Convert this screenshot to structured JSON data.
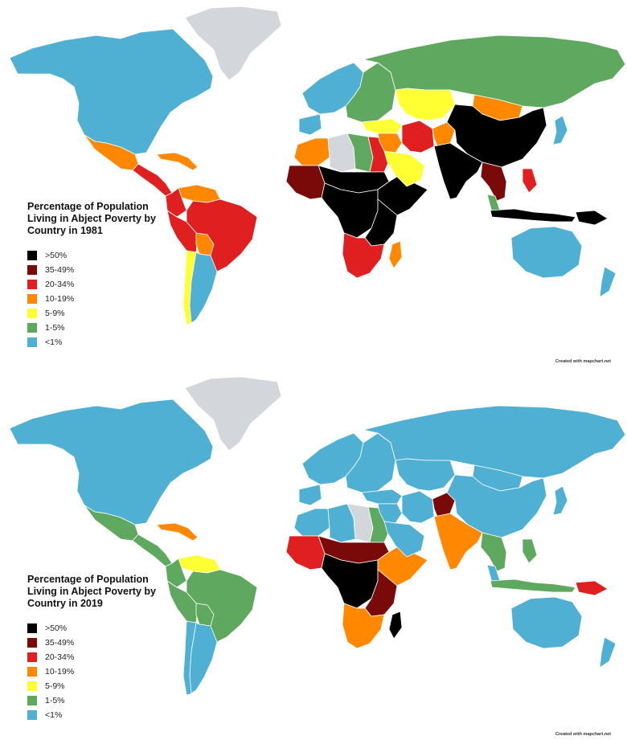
{
  "colors": {
    "gt50": "#000000",
    "c35_49": "#7a0a0a",
    "c20_34": "#e02020",
    "c10_19": "#ff8800",
    "c5_9": "#ffff33",
    "c1_5": "#5fa85f",
    "lt1": "#4fb0d3",
    "nodata": "#d3d6da"
  },
  "legend_labels": [
    ">50%",
    "35-49%",
    "20-34%",
    "10-19%",
    "5-9%",
    "1-5%",
    "<1%"
  ],
  "credit": "Created with mapchart.net",
  "maps": [
    {
      "id": "1981",
      "title": "Percentage of Population Living in Abject Poverty by Country in 1981",
      "regions": {
        "north_america": "lt1",
        "greenland": "nodata",
        "mexico": "c10_19",
        "central_america": "c20_34",
        "caribbean": "c10_19",
        "venezuela": "c10_19",
        "colombia": "c20_34",
        "peru": "c20_34",
        "brazil": "c20_34",
        "bolivia": "c10_19",
        "chile": "c5_9",
        "argentina": "lt1",
        "western_europe": "lt1",
        "iberia": "lt1",
        "eastern_europe": "c1_5",
        "russia": "c1_5",
        "north_africa_west": "c10_19",
        "libya": "c1_5",
        "egypt": "c20_34",
        "algeria": "nodata",
        "sahel": "gt50",
        "west_africa": "c35_49",
        "central_africa": "gt50",
        "horn_of_africa": "gt50",
        "east_africa": "gt50",
        "southern_africa": "c20_34",
        "madagascar": "c10_19",
        "turkey": "c5_9",
        "middle_east": "c10_19",
        "arabia": "c5_9",
        "iran": "c20_34",
        "central_asia": "c5_9",
        "afghanistan": "c10_19",
        "mongolia": "c10_19",
        "china": "gt50",
        "india": "gt50",
        "southeast_asia": "c35_49",
        "malaysia": "c1_5",
        "indonesia": "gt50",
        "philippines": "c20_34",
        "japan": "lt1",
        "australia": "lt1",
        "new_zealand": "lt1",
        "png": "gt50"
      }
    },
    {
      "id": "2019",
      "title": "Percentage of Population Living in Abject Poverty by Country in 2019",
      "regions": {
        "north_america": "lt1",
        "greenland": "nodata",
        "mexico": "c1_5",
        "central_america": "c1_5",
        "caribbean": "c10_19",
        "venezuela": "c5_9",
        "colombia": "c1_5",
        "peru": "c1_5",
        "brazil": "c1_5",
        "bolivia": "c1_5",
        "chile": "lt1",
        "argentina": "lt1",
        "western_europe": "lt1",
        "iberia": "lt1",
        "eastern_europe": "lt1",
        "russia": "lt1",
        "north_africa_west": "lt1",
        "libya": "nodata",
        "egypt": "c1_5",
        "algeria": "lt1",
        "sahel": "c35_49",
        "west_africa": "c20_34",
        "central_africa": "gt50",
        "horn_of_africa": "c10_19",
        "east_africa": "c35_49",
        "southern_africa": "c10_19",
        "madagascar": "gt50",
        "turkey": "lt1",
        "middle_east": "lt1",
        "arabia": "lt1",
        "iran": "lt1",
        "central_asia": "lt1",
        "afghanistan": "c35_49",
        "mongolia": "lt1",
        "china": "lt1",
        "india": "c10_19",
        "southeast_asia": "c1_5",
        "malaysia": "lt1",
        "indonesia": "c1_5",
        "philippines": "c1_5",
        "japan": "lt1",
        "australia": "lt1",
        "new_zealand": "lt1",
        "png": "c20_34"
      }
    }
  ]
}
